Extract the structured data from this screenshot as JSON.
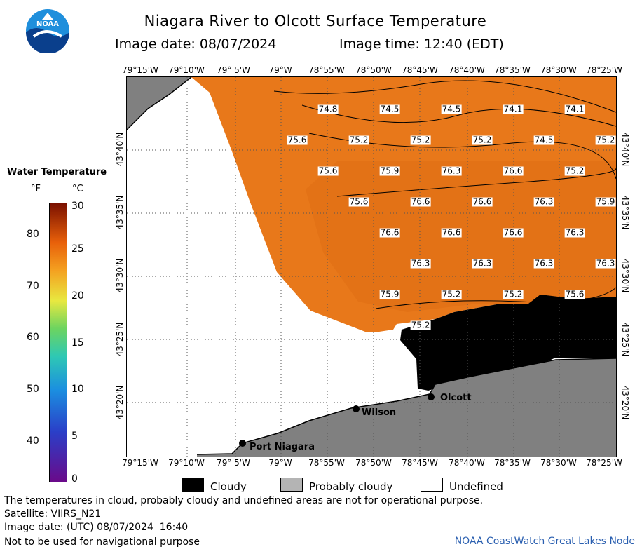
{
  "title": "Niagara River to Olcott Surface Temperature",
  "image_date_label": "Image date: 08/07/2024",
  "image_time_label": "Image time: 12:40 (EDT)",
  "logo_text": "NOAA",
  "lon_labels": [
    "79°15'W",
    "79°10'W",
    "79° 5'W",
    "79°W",
    "78°55'W",
    "78°50'W",
    "78°45'W",
    "78°40'W",
    "78°35'W",
    "78°30'W",
    "78°25'W"
  ],
  "lat_labels": [
    "43°40'N",
    "43°35'N",
    "43°30'N",
    "43°25'N",
    "43°20'N"
  ],
  "temperature_labels": [
    "74.8",
    "74.5",
    "74.5",
    "74.1",
    "74.1",
    "75.6",
    "75.2",
    "75.2",
    "75.2",
    "74.5",
    "75.2",
    "75.6",
    "75.9",
    "76.3",
    "76.6",
    "75.2",
    "75.6",
    "76.6",
    "76.6",
    "76.3",
    "75.9",
    "76.6",
    "76.6",
    "76.6",
    "76.3",
    "76.3",
    "76.3",
    "76.3",
    "76.3",
    "75.9",
    "75.2",
    "75.2",
    "75.6",
    "75.2"
  ],
  "places": {
    "olcott": "Olcott",
    "wilson": "Wilson",
    "port_niagara": "Port Niagara"
  },
  "colorbar": {
    "title": "Water Temperature",
    "unit_f": "°F",
    "unit_c": "°C",
    "f_ticks": [
      "80",
      "70",
      "60",
      "50",
      "40"
    ],
    "c_ticks": [
      "30",
      "25",
      "20",
      "15",
      "10",
      "5",
      "0"
    ]
  },
  "legend": {
    "cloudy": "Cloudy",
    "probably_cloudy": "Probably cloudy",
    "undefined": "Undefined",
    "colors": {
      "cloudy": "#000000",
      "probably_cloudy": "#b4b4b4",
      "undefined": "#ffffff"
    }
  },
  "footer": {
    "disclaimer": "The temperatures in cloud, probably cloudy and undefined areas are not for operational purpose.",
    "satellite": "Satellite: VIIRS_N21",
    "utc_date": "Image date: (UTC) 08/07/2024  16:40",
    "nav_warning": "Not to be used for navigational purpose",
    "credit": "NOAA CoastWatch Great Lakes Node"
  },
  "colors": {
    "water": "#e8781a",
    "land": "#808080",
    "credit": "#2a5fb0"
  }
}
